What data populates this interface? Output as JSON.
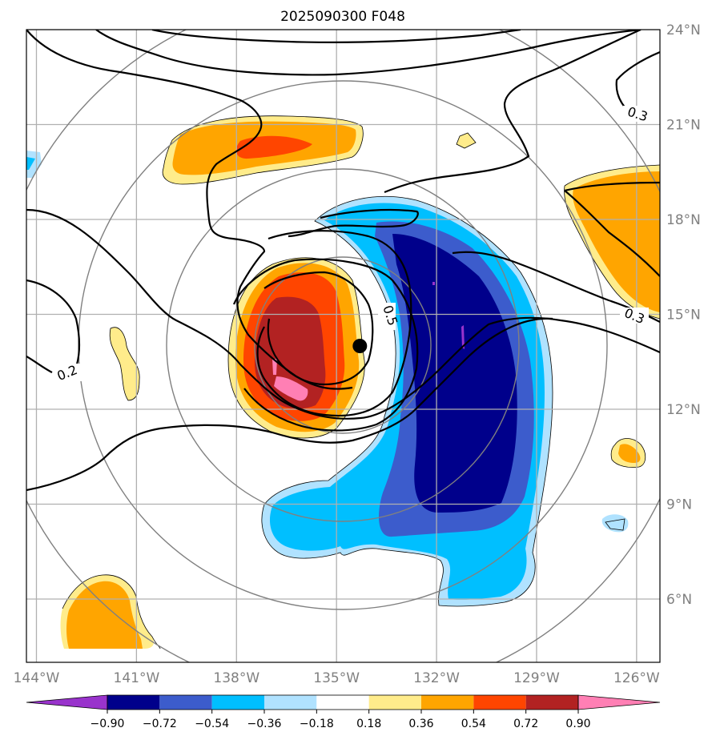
{
  "chart_data": {
    "type": "map-contour",
    "title": "2025090300 F048",
    "x_axis": {
      "range": [
        -144.3,
        -125.3
      ],
      "ticks": [
        -144,
        -141,
        -138,
        -135,
        -132,
        -129,
        -126
      ],
      "tick_labels": [
        "144°W",
        "141°W",
        "138°W",
        "135°W",
        "132°W",
        "129°W",
        "126°W"
      ]
    },
    "y_axis": {
      "range": [
        4.0,
        24.0
      ],
      "ticks": [
        6,
        9,
        12,
        15,
        18,
        21,
        24
      ],
      "tick_labels": [
        "6°N",
        "9°N",
        "12°N",
        "15°N",
        "18°N",
        "21°N",
        "24°N"
      ]
    },
    "storm_center": {
      "lon": -134.3,
      "lat": 14.0
    },
    "range_rings_count": 4,
    "colorbar": {
      "levels": [
        "−0.90",
        "−0.72",
        "−0.54",
        "−0.36",
        "−0.18",
        "0.18",
        "0.36",
        "0.54",
        "0.72",
        "0.90"
      ],
      "colors": [
        "#9933cc",
        "#00008b",
        "#3c5ccc",
        "#00bfff",
        "#b0e2ff",
        "#ffffff",
        "#ffec8b",
        "#ffa500",
        "#ff4500",
        "#b22222",
        "#ff7fb4"
      ],
      "extend": "both"
    },
    "contour_labels": [
      {
        "text": "0.3",
        "lon": -126.0,
        "lat": 20.7
      },
      {
        "text": "0.3",
        "lon": -125.9,
        "lat": 15.0
      },
      {
        "text": "0.2",
        "lon": -143.5,
        "lat": 13.6
      },
      {
        "text": "0.5",
        "lon": -133.9,
        "lat": 15.0
      }
    ]
  }
}
